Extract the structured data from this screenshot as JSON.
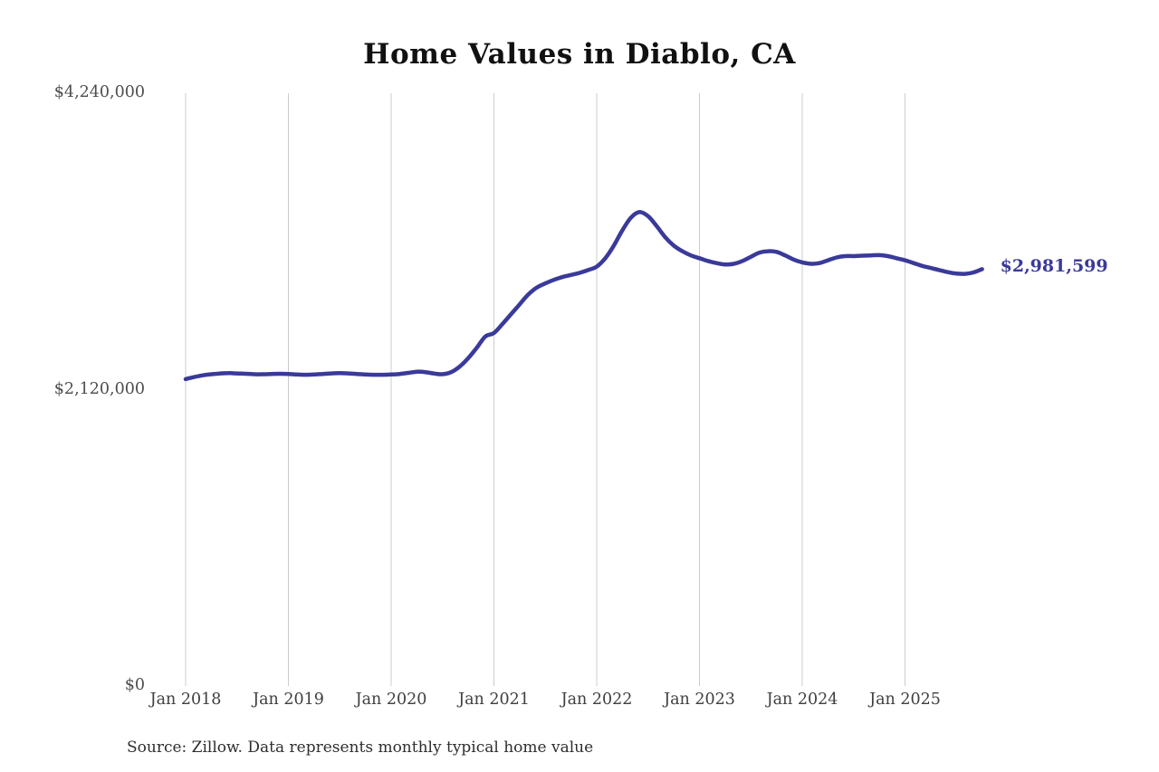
{
  "title": "Home Values in Diablo, CA",
  "source_note": "Source: Zillow. Data represents monthly typical home value",
  "end_label": "$2,981,599",
  "colors": {
    "line": "#3a3a9a",
    "grid": "#cccccc",
    "title_text": "#111111",
    "axis_text": "#4d4d4d",
    "source_text": "#2e2e2e",
    "background": "#ffffff"
  },
  "chart_data": {
    "type": "line",
    "title": "Home Values in Diablo, CA",
    "xlabel": "",
    "ylabel": "",
    "frequency": "monthly",
    "x_start_label": "Jan 2018",
    "x_tick_labels": [
      "Jan 2018",
      "Jan 2019",
      "Jan 2020",
      "Jan 2021",
      "Jan 2022",
      "Jan 2023",
      "Jan 2024",
      "Jan 2025"
    ],
    "y_ticks": [
      {
        "value": 0,
        "label": "$0"
      },
      {
        "value": 2120000,
        "label": "$2,120,000"
      },
      {
        "value": 4240000,
        "label": "$4,240,000"
      }
    ],
    "ylim": [
      0,
      4240000
    ],
    "grid": "vertical-only",
    "legend": "none",
    "annotation": {
      "text": "$2,981,599",
      "attach": "last-point"
    },
    "series": [
      {
        "name": "Typical home value",
        "values": [
          2195000,
          2210000,
          2222000,
          2230000,
          2235000,
          2238000,
          2236000,
          2233000,
          2230000,
          2230000,
          2232000,
          2233000,
          2232000,
          2228000,
          2226000,
          2228000,
          2232000,
          2236000,
          2238000,
          2236000,
          2232000,
          2228000,
          2226000,
          2226000,
          2228000,
          2232000,
          2240000,
          2248000,
          2245000,
          2235000,
          2230000,
          2245000,
          2285000,
          2345000,
          2420000,
          2500000,
          2525000,
          2590000,
          2660000,
          2730000,
          2800000,
          2850000,
          2880000,
          2905000,
          2925000,
          2940000,
          2955000,
          2975000,
          3000000,
          3060000,
          3150000,
          3260000,
          3350000,
          3390000,
          3360000,
          3290000,
          3210000,
          3150000,
          3110000,
          3080000,
          3060000,
          3040000,
          3025000,
          3015000,
          3020000,
          3040000,
          3070000,
          3100000,
          3110000,
          3105000,
          3080000,
          3050000,
          3030000,
          3020000,
          3025000,
          3045000,
          3065000,
          3075000,
          3075000,
          3078000,
          3080000,
          3082000,
          3075000,
          3060000,
          3045000,
          3025000,
          3005000,
          2990000,
          2975000,
          2960000,
          2950000,
          2948000,
          2958000,
          2981599
        ]
      }
    ]
  }
}
